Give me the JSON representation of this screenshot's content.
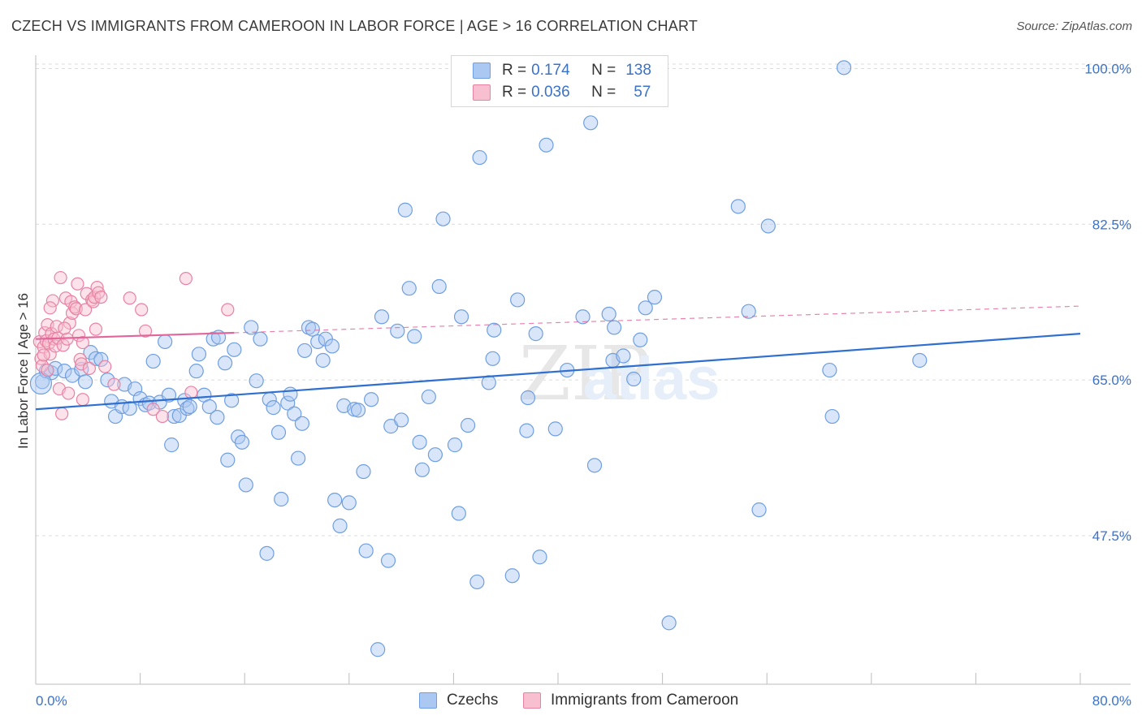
{
  "title": "CZECH VS IMMIGRANTS FROM CAMEROON IN LABOR FORCE | AGE > 16 CORRELATION CHART",
  "source": "Source: ZipAtlas.com",
  "watermark": "ZIPatlas",
  "legend": {
    "rows": [
      {
        "r_label": "R =",
        "r_value": "0.174",
        "n_label": "N =",
        "n_value": "138",
        "color": "#aac8f2",
        "border": "#6f9fe0"
      },
      {
        "r_label": "R =",
        "r_value": "0.036",
        "n_label": "N =",
        "n_value": "57",
        "color": "#f8bfd0",
        "border": "#e882a3"
      }
    ]
  },
  "bottom_legend": [
    {
      "label": "Czechs",
      "color": "#aac8f2",
      "border": "#6f9fe0"
    },
    {
      "label": "Immigrants from Cameroon",
      "color": "#f8bfd0",
      "border": "#e882a3"
    }
  ],
  "chart_data": {
    "type": "scatter",
    "ylabel": "In Labor Force | Age > 16",
    "x_tick_labels": [
      "0.0%",
      "80.0%"
    ],
    "y_tick_labels": [
      "100.0%",
      "82.5%",
      "65.0%",
      "47.5%"
    ],
    "y_tick_values": [
      100.0,
      82.5,
      65.0,
      47.5
    ],
    "xlim": [
      0,
      80
    ],
    "ylim": [
      30.8,
      101.5
    ],
    "grid": true,
    "series": [
      {
        "name": "Czechs",
        "color": "#6f9fe0",
        "fill": "rgba(170,200,242,0.45)",
        "trend": {
          "x0": 0,
          "y0": 61.7,
          "x1": 80,
          "y1": 70.2,
          "color": "#2f6fcf"
        },
        "points": [
          [
            0.5,
            64.8
          ],
          [
            0.8,
            66.0
          ],
          [
            1.2,
            65.8
          ],
          [
            1.5,
            66.3
          ],
          [
            2.2,
            66.0
          ],
          [
            2.8,
            65.5
          ],
          [
            3.5,
            66.2
          ],
          [
            3.8,
            64.8
          ],
          [
            4.2,
            68.1
          ],
          [
            4.6,
            67.4
          ],
          [
            5.0,
            67.3
          ],
          [
            5.5,
            65.0
          ],
          [
            5.8,
            62.6
          ],
          [
            6.1,
            60.9
          ],
          [
            6.6,
            62.0
          ],
          [
            6.8,
            64.5
          ],
          [
            7.2,
            61.8
          ],
          [
            7.6,
            64.0
          ],
          [
            8.0,
            62.9
          ],
          [
            8.4,
            62.2
          ],
          [
            8.7,
            62.4
          ],
          [
            9.0,
            67.1
          ],
          [
            9.5,
            62.5
          ],
          [
            9.9,
            69.3
          ],
          [
            10.2,
            63.3
          ],
          [
            10.4,
            57.7
          ],
          [
            10.6,
            60.9
          ],
          [
            11.0,
            61.0
          ],
          [
            11.4,
            62.7
          ],
          [
            11.6,
            61.8
          ],
          [
            11.8,
            62.0
          ],
          [
            12.3,
            66.0
          ],
          [
            12.5,
            67.9
          ],
          [
            12.9,
            63.3
          ],
          [
            13.3,
            62.0
          ],
          [
            13.6,
            69.6
          ],
          [
            13.9,
            60.8
          ],
          [
            14.0,
            69.8
          ],
          [
            14.5,
            66.9
          ],
          [
            14.7,
            56.0
          ],
          [
            15.0,
            62.7
          ],
          [
            15.2,
            68.4
          ],
          [
            15.5,
            58.6
          ],
          [
            15.8,
            58.0
          ],
          [
            16.1,
            53.2
          ],
          [
            16.5,
            70.9
          ],
          [
            16.9,
            64.9
          ],
          [
            17.2,
            69.6
          ],
          [
            17.7,
            45.5
          ],
          [
            17.9,
            62.8
          ],
          [
            18.2,
            61.9
          ],
          [
            18.6,
            59.1
          ],
          [
            18.8,
            51.6
          ],
          [
            19.3,
            62.4
          ],
          [
            19.5,
            63.4
          ],
          [
            19.8,
            61.2
          ],
          [
            20.1,
            56.2
          ],
          [
            20.4,
            60.1
          ],
          [
            20.6,
            68.3
          ],
          [
            20.9,
            70.9
          ],
          [
            21.2,
            70.7
          ],
          [
            21.6,
            69.3
          ],
          [
            22.0,
            67.2
          ],
          [
            22.2,
            69.6
          ],
          [
            22.7,
            68.8
          ],
          [
            22.9,
            51.5
          ],
          [
            23.3,
            48.6
          ],
          [
            23.6,
            62.1
          ],
          [
            24.0,
            51.2
          ],
          [
            24.4,
            61.7
          ],
          [
            24.7,
            61.6
          ],
          [
            25.1,
            54.7
          ],
          [
            25.3,
            45.8
          ],
          [
            25.7,
            62.8
          ],
          [
            26.2,
            34.7
          ],
          [
            26.5,
            72.1
          ],
          [
            27.0,
            44.7
          ],
          [
            27.2,
            59.8
          ],
          [
            27.7,
            70.5
          ],
          [
            28.0,
            60.5
          ],
          [
            28.3,
            84.1
          ],
          [
            28.6,
            75.3
          ],
          [
            29.0,
            69.9
          ],
          [
            29.4,
            58.0
          ],
          [
            29.6,
            54.9
          ],
          [
            30.1,
            63.1
          ],
          [
            30.6,
            56.6
          ],
          [
            30.9,
            75.5
          ],
          [
            31.2,
            83.1
          ],
          [
            32.1,
            57.7
          ],
          [
            32.4,
            50.0
          ],
          [
            32.6,
            72.1
          ],
          [
            33.1,
            59.9
          ],
          [
            33.8,
            42.3
          ],
          [
            34.0,
            90.0
          ],
          [
            34.7,
            64.7
          ],
          [
            35.0,
            67.4
          ],
          [
            35.1,
            70.6
          ],
          [
            36.5,
            43.0
          ],
          [
            36.9,
            74.0
          ],
          [
            37.6,
            59.3
          ],
          [
            37.7,
            63.0
          ],
          [
            38.3,
            70.2
          ],
          [
            38.6,
            45.1
          ],
          [
            39.1,
            91.4
          ],
          [
            39.8,
            59.5
          ],
          [
            40.7,
            66.1
          ],
          [
            41.9,
            72.1
          ],
          [
            42.5,
            93.9
          ],
          [
            42.8,
            55.4
          ],
          [
            43.9,
            72.4
          ],
          [
            44.2,
            67.2
          ],
          [
            44.3,
            70.9
          ],
          [
            45.0,
            67.7
          ],
          [
            45.8,
            65.1
          ],
          [
            46.3,
            69.5
          ],
          [
            46.7,
            73.1
          ],
          [
            47.4,
            74.3
          ],
          [
            48.5,
            37.7
          ],
          [
            53.8,
            84.5
          ],
          [
            54.6,
            72.7
          ],
          [
            55.4,
            50.4
          ],
          [
            56.1,
            82.3
          ],
          [
            60.8,
            66.1
          ],
          [
            61.0,
            60.9
          ],
          [
            61.9,
            100.1
          ],
          [
            67.7,
            67.2
          ]
        ]
      },
      {
        "name": "Immigrants from Cameroon",
        "color": "#e882a3",
        "fill": "rgba(248,191,208,0.45)",
        "trend": {
          "x0": 0,
          "y0": 69.6,
          "x1": 15.2,
          "y1": 70.3,
          "x2": 80,
          "y2": 73.3,
          "color": "#e2659a"
        },
        "points": [
          [
            0.3,
            69.3
          ],
          [
            0.4,
            67.4
          ],
          [
            0.5,
            66.6
          ],
          [
            0.6,
            68.7
          ],
          [
            0.7,
            70.3
          ],
          [
            0.8,
            69.4
          ],
          [
            0.9,
            71.2
          ],
          [
            1.0,
            69.1
          ],
          [
            1.1,
            67.9
          ],
          [
            1.2,
            70.2
          ],
          [
            1.3,
            73.9
          ],
          [
            1.4,
            69.6
          ],
          [
            1.5,
            68.8
          ],
          [
            1.6,
            71.0
          ],
          [
            1.7,
            69.7
          ],
          [
            1.8,
            64.0
          ],
          [
            1.9,
            76.5
          ],
          [
            2.0,
            61.2
          ],
          [
            2.1,
            68.9
          ],
          [
            2.3,
            74.2
          ],
          [
            2.4,
            69.6
          ],
          [
            2.6,
            71.4
          ],
          [
            2.7,
            73.8
          ],
          [
            2.8,
            72.5
          ],
          [
            3.0,
            73.2
          ],
          [
            3.1,
            73.0
          ],
          [
            3.2,
            75.8
          ],
          [
            3.3,
            70.0
          ],
          [
            3.4,
            67.3
          ],
          [
            3.5,
            66.8
          ],
          [
            3.6,
            62.8
          ],
          [
            3.8,
            72.9
          ],
          [
            3.9,
            74.7
          ],
          [
            4.1,
            66.3
          ],
          [
            4.3,
            74.0
          ],
          [
            4.4,
            73.8
          ],
          [
            4.5,
            74.3
          ],
          [
            4.6,
            70.7
          ],
          [
            4.7,
            75.4
          ],
          [
            4.8,
            74.8
          ],
          [
            5.0,
            74.3
          ],
          [
            5.3,
            66.5
          ],
          [
            6.0,
            64.5
          ],
          [
            7.2,
            74.2
          ],
          [
            8.1,
            72.9
          ],
          [
            8.4,
            70.5
          ],
          [
            9.0,
            61.7
          ],
          [
            9.7,
            60.9
          ],
          [
            11.5,
            76.4
          ],
          [
            11.9,
            63.6
          ],
          [
            14.7,
            72.9
          ],
          [
            2.5,
            63.5
          ],
          [
            1.1,
            73.1
          ],
          [
            0.9,
            66.1
          ],
          [
            2.2,
            70.8
          ],
          [
            3.6,
            69.2
          ],
          [
            0.6,
            67.8
          ]
        ]
      }
    ]
  }
}
